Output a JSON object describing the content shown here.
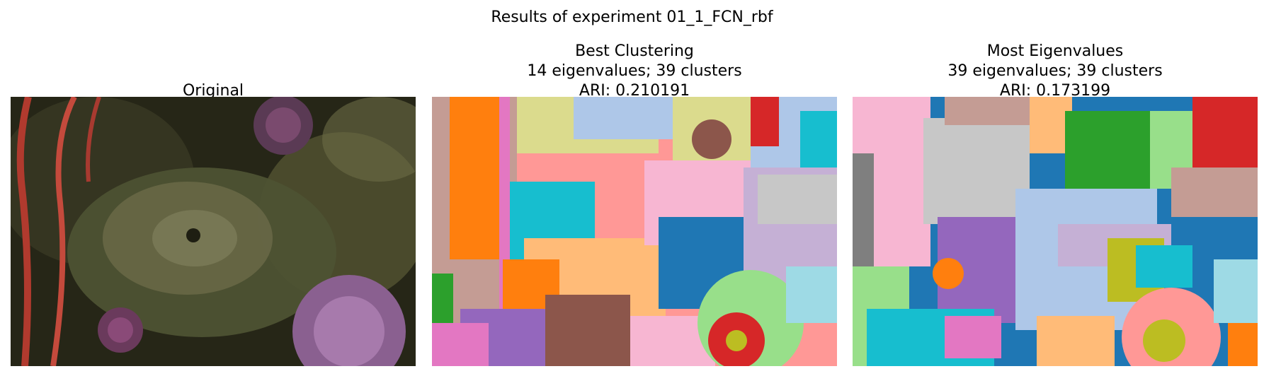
{
  "figure": {
    "suptitle": "Results of experiment 01_1_FCN_rbf"
  },
  "panels": [
    {
      "lines": [
        "Original"
      ]
    },
    {
      "lines": [
        "Best Clustering",
        "14 eigenvalues; 39 clusters",
        "ARI: 0.210191"
      ]
    },
    {
      "lines": [
        "Most Eigenvalues",
        "39 eigenvalues; 39 clusters",
        "ARI: 0.173199"
      ]
    }
  ],
  "colors": {
    "original_bg": "#2a2a1a",
    "seg_palette": [
      "#1f77b4",
      "#aec7e8",
      "#ff7f0e",
      "#ffbb78",
      "#2ca02c",
      "#98df8a",
      "#d62728",
      "#ff9896",
      "#9467bd",
      "#c5b0d5",
      "#8c564b",
      "#c49c94",
      "#e377c2",
      "#f7b6d2",
      "#7f7f7f",
      "#c7c7c7",
      "#bcbd22",
      "#dbdb8d",
      "#17becf",
      "#9edae5"
    ]
  }
}
